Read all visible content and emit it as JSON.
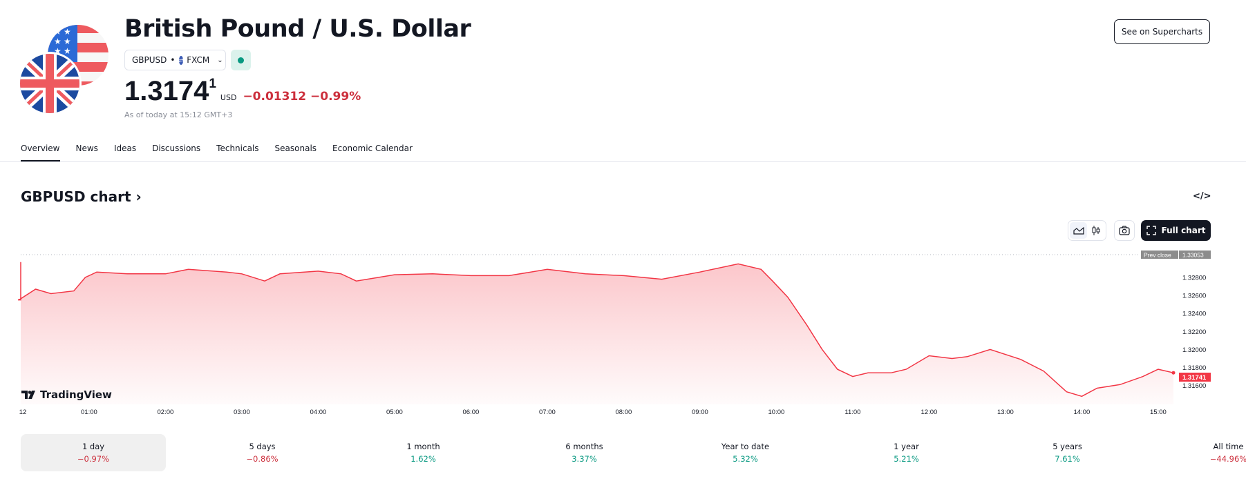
{
  "header": {
    "title": "British Pound / U.S. Dollar",
    "symbol": "GBPUSD",
    "separator": "•",
    "exchange": "FXCM",
    "price_main": "1.3174",
    "price_sup": "1",
    "currency": "USD",
    "change": "−0.01312 −0.99%",
    "as_of": "As of today at 15:12 GMT+3",
    "market_status_color": "#089981",
    "supercharts_label": "See on Supercharts"
  },
  "tabs": [
    {
      "label": "Overview",
      "active": true
    },
    {
      "label": "News"
    },
    {
      "label": "Ideas"
    },
    {
      "label": "Discussions"
    },
    {
      "label": "Technicals"
    },
    {
      "label": "Seasonals"
    },
    {
      "label": "Economic Calendar"
    }
  ],
  "chart_section": {
    "title": "GBPUSD chart",
    "title_arrow": "›",
    "embed_icon": "</>",
    "full_chart_label": "Full chart",
    "logo_text": "TradingView"
  },
  "chart_data": {
    "type": "area",
    "line_color": "#f23645",
    "x_unit": "hour of day",
    "x_tick_labels": [
      "12",
      "01:00",
      "02:00",
      "03:00",
      "04:00",
      "05:00",
      "06:00",
      "07:00",
      "08:00",
      "09:00",
      "10:00",
      "11:00",
      "12:00",
      "13:00",
      "14:00",
      "15:00"
    ],
    "y_tick_labels": [
      "1.32800",
      "1.32600",
      "1.32400",
      "1.32200",
      "1.32000",
      "1.31800",
      "1.31600"
    ],
    "y_ticks": [
      1.328,
      1.326,
      1.324,
      1.322,
      1.32,
      1.318,
      1.316
    ],
    "prev_close_label": "Prev close",
    "prev_close": "1.33053",
    "last_price": "1.31741",
    "x": [
      0.07,
      0.1,
      0.3,
      0.5,
      0.8,
      0.95,
      1.1,
      1.5,
      2,
      2.3,
      2.8,
      3,
      3.3,
      3.5,
      4,
      4.3,
      4.5,
      5,
      5.5,
      6,
      6.5,
      7,
      7.5,
      8,
      8.5,
      9,
      9.5,
      9.8,
      9.95,
      10.15,
      10.4,
      10.6,
      10.8,
      11,
      11.2,
      11.5,
      11.7,
      12,
      12.3,
      12.5,
      12.8,
      13.2,
      13.5,
      13.8,
      14,
      14.2,
      14.5,
      14.8,
      15,
      15.2
    ],
    "y": [
      1.3255,
      1.3256,
      1.3267,
      1.3262,
      1.3265,
      1.328,
      1.3286,
      1.3284,
      1.3284,
      1.3289,
      1.3286,
      1.3284,
      1.3276,
      1.3284,
      1.3287,
      1.3284,
      1.3276,
      1.3283,
      1.3284,
      1.3282,
      1.3282,
      1.3289,
      1.3284,
      1.3282,
      1.3278,
      1.3286,
      1.3295,
      1.3289,
      1.3276,
      1.3258,
      1.3227,
      1.32,
      1.3178,
      1.317,
      1.3174,
      1.3174,
      1.3178,
      1.3193,
      1.319,
      1.3192,
      1.32,
      1.3189,
      1.3176,
      1.3153,
      1.3148,
      1.3157,
      1.3161,
      1.317,
      1.3178,
      1.31741
    ]
  },
  "periods": [
    {
      "label": "1 day",
      "value": "−0.97%",
      "dir": "neg",
      "selected": true
    },
    {
      "label": "5 days",
      "value": "−0.86%",
      "dir": "neg"
    },
    {
      "label": "1 month",
      "value": "1.62%",
      "dir": "pos"
    },
    {
      "label": "6 months",
      "value": "3.37%",
      "dir": "pos"
    },
    {
      "label": "Year to date",
      "value": "5.32%",
      "dir": "pos"
    },
    {
      "label": "1 year",
      "value": "5.21%",
      "dir": "pos"
    },
    {
      "label": "5 years",
      "value": "7.61%",
      "dir": "pos"
    },
    {
      "label": "All time",
      "value": "−44.96%",
      "dir": "neg"
    }
  ]
}
